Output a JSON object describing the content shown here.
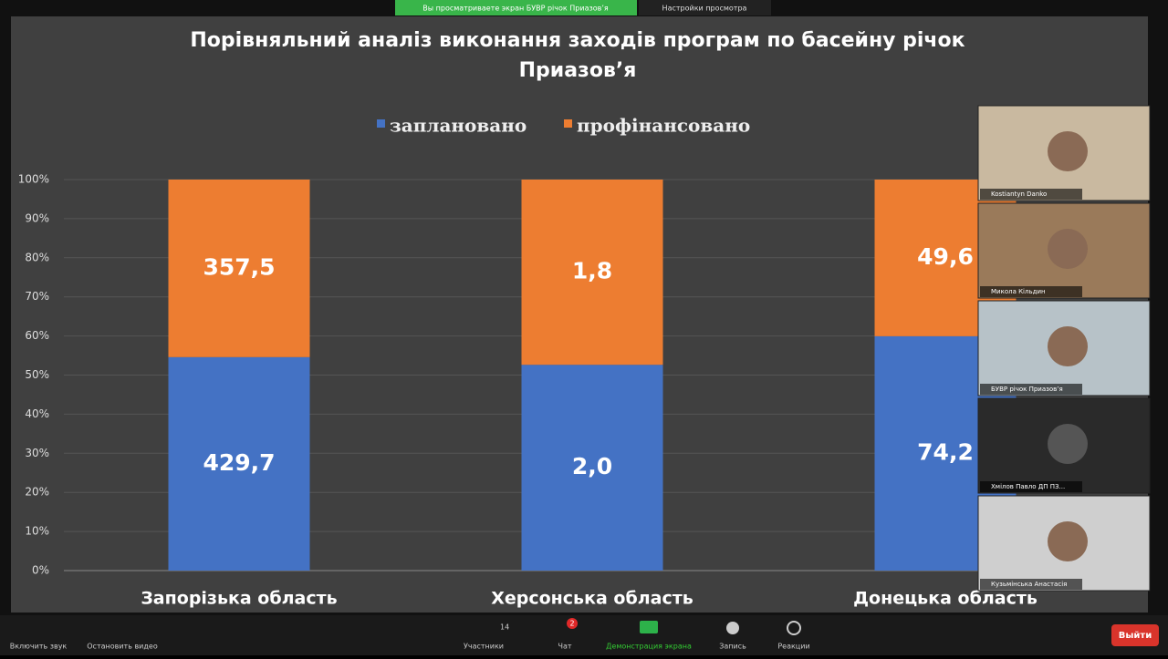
{
  "chart_data": {
    "type": "bar",
    "stacked": "percent",
    "title": "Порівняльний аналіз виконання заходів програм по басейну річок Приазов’я",
    "categories": [
      "Запорізька область",
      "Херсонська область",
      "Донецька область"
    ],
    "series": [
      {
        "name": "заплановано",
        "color": "#4472c4",
        "values": [
          429.7,
          2.0,
          74.2
        ],
        "value_labels": [
          "429,7",
          "2,0",
          "74,2"
        ]
      },
      {
        "name": "профінансовано",
        "color": "#ed7d31",
        "values": [
          357.5,
          1.8,
          49.6
        ],
        "value_labels": [
          "357,5",
          "1,8",
          "49,6"
        ]
      }
    ],
    "ylim": [
      0,
      100
    ],
    "yticks": [
      {
        "value": 0,
        "label": "0%"
      },
      {
        "value": 10,
        "label": "10%"
      },
      {
        "value": 20,
        "label": "20%"
      },
      {
        "value": 30,
        "label": "30%"
      },
      {
        "value": 40,
        "label": "40%"
      },
      {
        "value": 50,
        "label": "50%"
      },
      {
        "value": 60,
        "label": "60%"
      },
      {
        "value": 70,
        "label": "70%"
      },
      {
        "value": 80,
        "label": "80%"
      },
      {
        "value": 90,
        "label": "90%"
      },
      {
        "value": 100,
        "label": "100%"
      }
    ],
    "grid": true,
    "legend": "top"
  },
  "zoom": {
    "banner": "Вы просматриваете экран БУВР річок Приазов’я",
    "view_settings": "Настройки просмотра",
    "participants": [
      "Kostiantyn Danko",
      "Микола Кільдин",
      "БУВР річок Приазов’я",
      "Хмілов Павло ДП ПЗ...",
      "Кузьмінська Анастасія"
    ],
    "toolbar": {
      "audio": "Включить звук",
      "video": "Остановить видео",
      "participants": "Участники",
      "participants_count": "14",
      "chat": "Чат",
      "chat_badge": "2",
      "share": "Демонстрация экрана",
      "record": "Запись",
      "reactions": "Реакции",
      "leave": "Выйти"
    }
  }
}
